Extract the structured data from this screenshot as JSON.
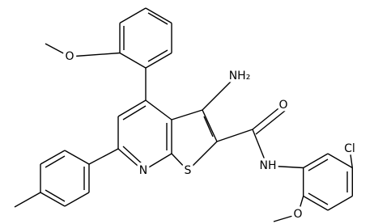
{
  "atoms": [
    {
      "label": "O"
    },
    {
      "label": "NH₂"
    },
    {
      "label": "O"
    },
    {
      "label": "Cl"
    },
    {
      "label": "N"
    },
    {
      "label": "S"
    },
    {
      "label": "NH"
    },
    {
      "label": "O"
    }
  ]
}
